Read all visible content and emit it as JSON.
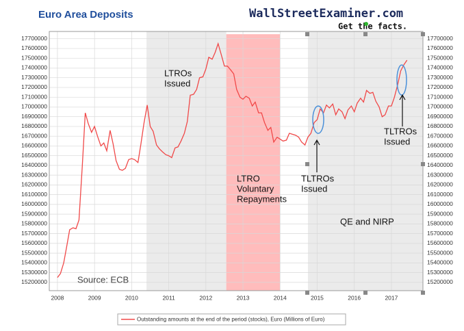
{
  "chart_data": {
    "type": "line",
    "title": "Euro Area Deposits",
    "brand": "WallStreetExaminer.com",
    "tagline": "Get the facts.",
    "source": "Source: ECB",
    "x": [
      2008.0,
      2008.08,
      2008.17,
      2008.25,
      2008.33,
      2008.42,
      2008.5,
      2008.58,
      2008.67,
      2008.75,
      2008.83,
      2008.92,
      2009.0,
      2009.08,
      2009.17,
      2009.25,
      2009.33,
      2009.42,
      2009.5,
      2009.58,
      2009.67,
      2009.75,
      2009.83,
      2009.92,
      2010.0,
      2010.08,
      2010.17,
      2010.25,
      2010.33,
      2010.42,
      2010.5,
      2010.58,
      2010.67,
      2010.75,
      2010.83,
      2010.92,
      2011.0,
      2011.08,
      2011.17,
      2011.25,
      2011.33,
      2011.42,
      2011.5,
      2011.58,
      2011.67,
      2011.75,
      2011.83,
      2011.92,
      2012.0,
      2012.08,
      2012.17,
      2012.25,
      2012.33,
      2012.42,
      2012.5,
      2012.58,
      2012.67,
      2012.75,
      2012.83,
      2012.92,
      2013.0,
      2013.08,
      2013.17,
      2013.25,
      2013.33,
      2013.42,
      2013.5,
      2013.58,
      2013.67,
      2013.75,
      2013.83,
      2013.92,
      2014.0,
      2014.08,
      2014.17,
      2014.25,
      2014.33,
      2014.42,
      2014.5,
      2014.58,
      2014.67,
      2014.75,
      2014.83,
      2014.92,
      2015.0,
      2015.08,
      2015.17,
      2015.25,
      2015.33,
      2015.42,
      2015.5,
      2015.58,
      2015.67,
      2015.75,
      2015.83,
      2015.92,
      2016.0,
      2016.08,
      2016.17,
      2016.25,
      2016.33,
      2016.42,
      2016.5,
      2016.58,
      2016.67,
      2016.75,
      2016.83,
      2016.92,
      2017.0,
      2017.08,
      2017.17,
      2017.25,
      2017.33,
      2017.42
    ],
    "series": [
      {
        "name": "Outstanding amounts at the end of the period (stocks), Euro (Millions of Euro)",
        "color": "#f04848",
        "values": [
          15250000,
          15290000,
          15400000,
          15570000,
          15740000,
          15760000,
          15750000,
          15840000,
          16400000,
          16940000,
          16830000,
          16740000,
          16800000,
          16700000,
          16600000,
          16630000,
          16550000,
          16760000,
          16620000,
          16450000,
          16360000,
          16350000,
          16370000,
          16460000,
          16470000,
          16460000,
          16430000,
          16620000,
          16830000,
          17020000,
          16800000,
          16750000,
          16610000,
          16570000,
          16540000,
          16510000,
          16500000,
          16480000,
          16580000,
          16590000,
          16650000,
          16730000,
          16850000,
          17120000,
          17130000,
          17180000,
          17300000,
          17310000,
          17390000,
          17510000,
          17490000,
          17560000,
          17650000,
          17530000,
          17420000,
          17420000,
          17380000,
          17340000,
          17180000,
          17100000,
          17080000,
          17110000,
          17090000,
          17010000,
          17050000,
          16940000,
          16940000,
          16840000,
          16760000,
          16790000,
          16640000,
          16690000,
          16670000,
          16650000,
          16660000,
          16730000,
          16720000,
          16710000,
          16690000,
          16640000,
          16610000,
          16690000,
          16730000,
          16840000,
          16870000,
          16980000,
          16940000,
          17020000,
          16990000,
          17030000,
          16920000,
          16980000,
          16950000,
          16880000,
          16970000,
          17010000,
          16950000,
          17040000,
          17090000,
          17050000,
          17170000,
          17140000,
          17150000,
          17060000,
          17000000,
          16900000,
          16920000,
          17010000,
          17010000,
          17100000,
          17230000,
          17370000,
          17430000,
          17480000
        ]
      }
    ],
    "xlim": [
      2007.78,
      2017.85
    ],
    "xticks": [
      2008,
      2009,
      2010,
      2011,
      2012,
      2013,
      2014,
      2015,
      2016,
      2017
    ],
    "ylim": [
      15115000,
      17775000
    ],
    "yticks": [
      15200000,
      15300000,
      15400000,
      15500000,
      15600000,
      15700000,
      15800000,
      15900000,
      16000000,
      16100000,
      16200000,
      16300000,
      16400000,
      16500000,
      16600000,
      16700000,
      16800000,
      16900000,
      17000000,
      17100000,
      17200000,
      17300000,
      17400000,
      17500000,
      17600000,
      17700000
    ],
    "grid": true,
    "shaded_regions": [
      {
        "x0": 2010.4,
        "x1": 2012.55,
        "color": "#ebebeb"
      },
      {
        "x0": 2012.55,
        "x1": 2014.0,
        "color": "#ffbcbc"
      },
      {
        "x0": 2014.75,
        "x1": 2017.85,
        "color": "#ebebeb"
      }
    ],
    "annotations": [
      {
        "lines": [
          "LTROs",
          "Issued"
        ]
      },
      {
        "lines": [
          "LTRO",
          "Voluntary",
          "Repayments"
        ]
      },
      {
        "lines": [
          "TLTROs",
          "Issued"
        ]
      },
      {
        "lines": [
          "QE and NIRP"
        ]
      },
      {
        "lines": [
          "TLTROs",
          "Issued"
        ]
      }
    ]
  }
}
